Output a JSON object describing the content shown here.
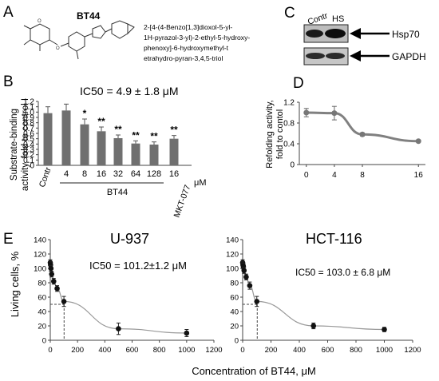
{
  "panels": {
    "A": {
      "letter": "A",
      "compound": "BT44",
      "name_lines": [
        "2-[4-(4-Benzo[1,3]dioxol-5-yl-",
        "1H-pyrazol-3-yl)-2-ethyl-5-hydroxy-",
        "phenoxy]-6-hydroxymethyl-t",
        "etrahydro-pyran-3,4,5-triol"
      ]
    },
    "B": {
      "letter": "B",
      "ic50": "IC50 = 4.9 ± 1.8 μM",
      "ylabel_lines": [
        "Substrate-binding",
        "activity, fold to control I"
      ],
      "group_bt44": "BT44",
      "group_mkt": "MKT-077",
      "unit": "μM"
    },
    "C": {
      "letter": "C",
      "lanes": [
        "Contr",
        "HS"
      ],
      "bands": [
        "Hsp70",
        "GAPDH"
      ]
    },
    "D": {
      "letter": "D",
      "ylabel_lines": [
        "Refolding activity,",
        "fold to contol"
      ]
    },
    "E": {
      "letter": "E",
      "ylabel": "Living cells, %",
      "xlabel": "Concentration of BT44, μM",
      "left": {
        "title": "U-937",
        "ic50": "IC50 = 101.2±1.2 μM"
      },
      "right": {
        "title": "HCT-116",
        "ic50": "IC50 = 103.0 ± 6.8 μM"
      }
    }
  },
  "chart_data": [
    {
      "id": "B",
      "type": "bar",
      "categories": [
        "Contr",
        "4",
        "8",
        "16",
        "32",
        "64",
        "128",
        "16"
      ],
      "values": [
        0.98,
        1.03,
        0.77,
        0.64,
        0.51,
        0.41,
        0.39,
        0.5
      ],
      "errors": [
        0.12,
        0.12,
        0.1,
        0.08,
        0.06,
        0.05,
        0.05,
        0.06
      ],
      "significance": [
        "",
        "",
        "*",
        "**",
        "**",
        "**",
        "**",
        "**"
      ],
      "ylim": [
        0,
        1.2
      ],
      "yticks": [
        "0",
        "0.1",
        "0.2",
        "0.3",
        "0.4",
        "0.5",
        "0.6",
        "0.7",
        "0.8",
        "0.9",
        "1.0",
        "1.1",
        "1.2"
      ],
      "bar_color": "#707070"
    },
    {
      "id": "D",
      "type": "line",
      "x": [
        0,
        4,
        8,
        16
      ],
      "y": [
        1.0,
        0.99,
        0.58,
        0.45
      ],
      "errors": [
        0.08,
        0.13,
        0.03,
        0.02
      ],
      "xlim": [
        -1,
        17
      ],
      "ylim": [
        0,
        1.2
      ],
      "yticks": [
        "0",
        "0.4",
        "0.8",
        "1.2"
      ],
      "xticks": [
        "0",
        "4",
        "8",
        "16"
      ],
      "line_color": "#808080"
    },
    {
      "id": "E-left",
      "type": "scatter",
      "x": [
        0,
        2,
        5,
        10,
        25,
        50,
        100,
        500,
        1000
      ],
      "y": [
        108,
        105,
        100,
        92,
        82,
        72,
        54,
        16,
        10
      ],
      "errors": [
        4,
        4,
        4,
        4,
        4,
        4,
        7,
        8,
        5
      ],
      "ic50_x": 101.2,
      "ic50_y": 50,
      "xlim": [
        0,
        1200
      ],
      "ylim": [
        0,
        140
      ],
      "xticks": [
        "0",
        "200",
        "400",
        "600",
        "800",
        "1000",
        "1200"
      ],
      "yticks": [
        "0",
        "20",
        "40",
        "60",
        "80",
        "100",
        "120",
        "140"
      ]
    },
    {
      "id": "E-right",
      "type": "scatter",
      "x": [
        0,
        2,
        5,
        10,
        25,
        50,
        100,
        500,
        1000
      ],
      "y": [
        108,
        105,
        103,
        97,
        88,
        76,
        54,
        20,
        15
      ],
      "errors": [
        4,
        4,
        4,
        4,
        4,
        5,
        7,
        4,
        3
      ],
      "ic50_x": 103.0,
      "ic50_y": 50,
      "xlim": [
        0,
        1200
      ],
      "ylim": [
        0,
        140
      ],
      "xticks": [
        "0",
        "200",
        "400",
        "600",
        "800",
        "1000",
        "1200"
      ],
      "yticks": [
        "0",
        "20",
        "40",
        "60",
        "80",
        "100",
        "120",
        "140"
      ]
    }
  ]
}
